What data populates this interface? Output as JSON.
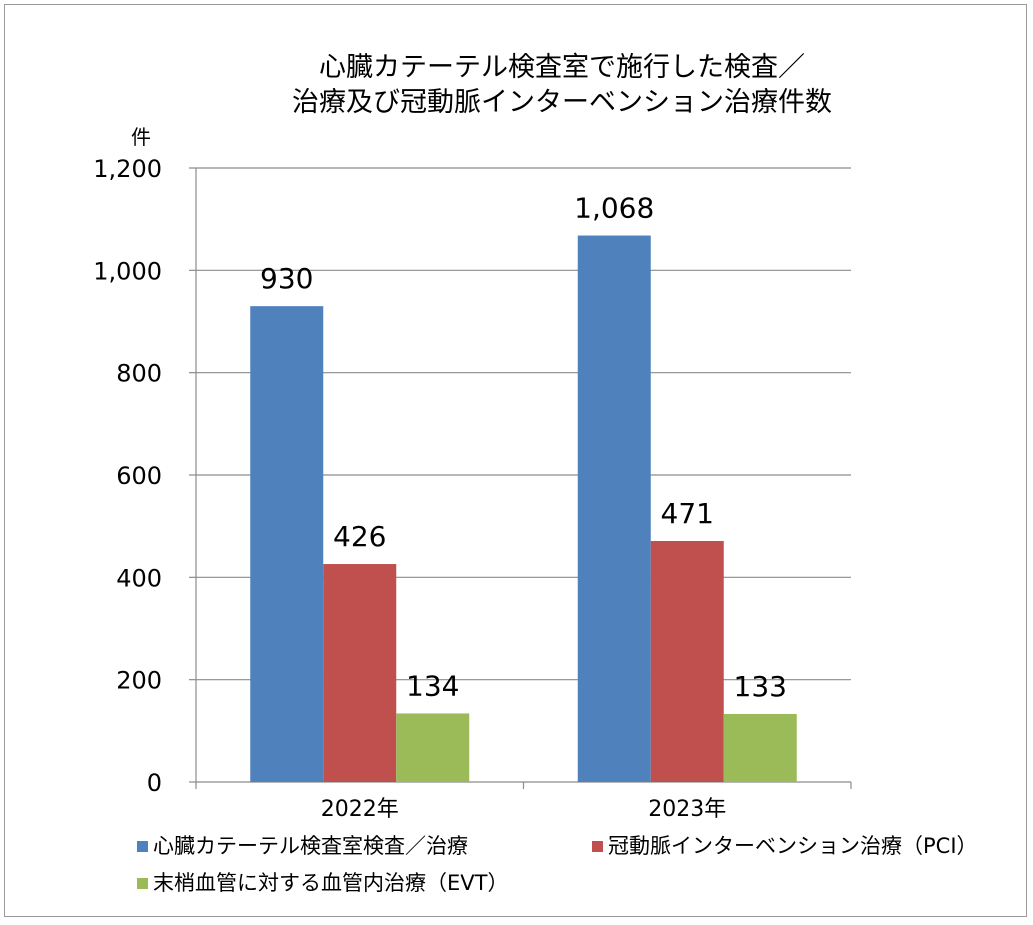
{
  "chart_data": {
    "type": "bar",
    "title": "心臓カテーテル検査室で施行した検査／\n治療及び冠動脈インターベンション治療件数",
    "ylabel": "件",
    "categories": [
      "2022年",
      "2023年"
    ],
    "ylim": [
      0,
      1200
    ],
    "yticks": [
      0,
      200,
      400,
      600,
      800,
      1000,
      1200
    ],
    "ytick_labels": [
      "0",
      "200",
      "400",
      "600",
      "800",
      "1,000",
      "1,200"
    ],
    "grid": true,
    "legend_position": "bottom",
    "series": [
      {
        "name": "心臓カテーテル検査室検査／治療",
        "color": "#4f81bd",
        "values": [
          930,
          1068
        ],
        "labels": [
          "930",
          "1,068"
        ]
      },
      {
        "name": "冠動脈インターベンション治療（PCI）",
        "color": "#c0504d",
        "values": [
          426,
          471
        ],
        "labels": [
          "426",
          "471"
        ]
      },
      {
        "name": "末梢血管に対する血管内治療（EVT）",
        "color": "#9bbb59",
        "values": [
          134,
          133
        ],
        "labels": [
          "134",
          "133"
        ]
      }
    ]
  }
}
